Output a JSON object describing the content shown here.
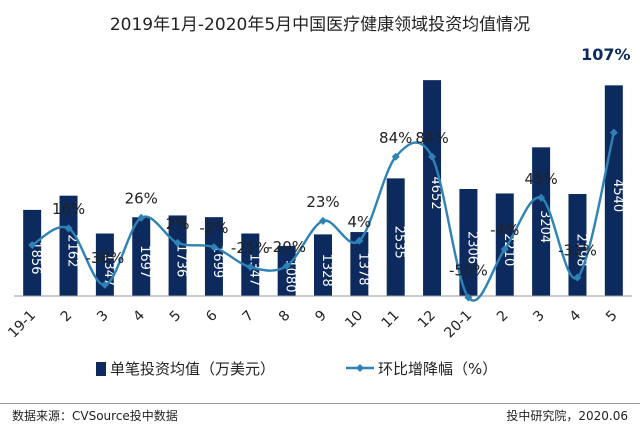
{
  "chart_data": {
    "type": "bar",
    "title": "2019年1月-2020年5月中国医疗健康领域投资均值情况",
    "categories": [
      "19-1",
      "2",
      "3",
      "4",
      "5",
      "6",
      "7",
      "8",
      "9",
      "10",
      "11",
      "12",
      "20-1",
      "2",
      "3",
      "4",
      "5"
    ],
    "series": [
      {
        "name": "单笔投资均值（万美元）",
        "type": "bar",
        "values": [
          1856,
          2162,
          1347,
          1697,
          1736,
          1699,
          1347,
          1080,
          1328,
          1378,
          2535,
          4652,
          2306,
          2210,
          3204,
          2198,
          4540
        ]
      },
      {
        "name": "环比增降幅（%）",
        "type": "line",
        "values": [
          null,
          16,
          -38,
          26,
          2,
          -2,
          -21,
          -20,
          23,
          4,
          84,
          84,
          -50,
          -4,
          45,
          -31,
          107
        ],
        "labels": [
          "",
          "16%",
          "-38%",
          "26%",
          "2%",
          "-2%",
          "-21%",
          "-20%",
          "23%",
          "4%",
          "84%",
          "84%",
          "-50%",
          "-4%",
          "45%",
          "-31%",
          "107%"
        ],
        "start_point": true
      }
    ],
    "ylim_bar": [
      0,
      5000
    ],
    "ylim_line": [
      -80,
      120
    ],
    "grid": false,
    "legend": "bottom",
    "colors": {
      "bar": "#0d2a5e",
      "line": "#2e82b4",
      "text": "#222222",
      "bar_label": "#ffffff",
      "highlight": "#0d2a5e"
    }
  },
  "footer": {
    "source": "数据来源：CVSource投中数据",
    "credit": "投中研究院，2020.06"
  }
}
